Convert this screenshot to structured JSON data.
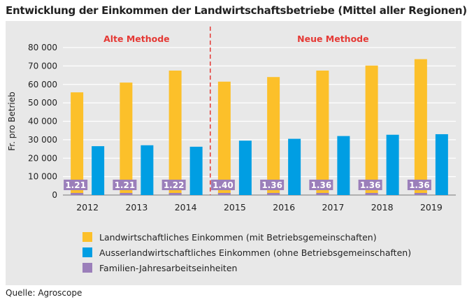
{
  "title": "Entwicklung der Einkommen der Landwirtschaftsbetriebe (Mittel aller Regionen)",
  "source": "Quelle: Agroscope",
  "colors": {
    "agri": "#fcc02a",
    "nonagri": "#009ee3",
    "family": "#9b7fba",
    "divider": "#e53935",
    "method_label": "#e53935"
  },
  "chart_data": {
    "type": "bar",
    "title": "Entwicklung der Einkommen der Landwirtschaftsbetriebe (Mittel aller Regionen)",
    "ylabel": "Fr. pro Betrieb",
    "xlabel": "",
    "ylim": [
      0,
      80000
    ],
    "yticks": [
      0,
      10000,
      20000,
      30000,
      40000,
      50000,
      60000,
      70000,
      80000
    ],
    "ytick_labels": [
      "0",
      "10 000",
      "20 000",
      "30 000",
      "40 000",
      "50 000",
      "60 000",
      "70 000",
      "80 000"
    ],
    "grid": true,
    "categories": [
      "2012",
      "2013",
      "2014",
      "2015",
      "2016",
      "2017",
      "2018",
      "2019"
    ],
    "groups": [
      {
        "label": "Alte Methode",
        "categories": [
          "2012",
          "2013",
          "2014"
        ]
      },
      {
        "label": "Neue Methode",
        "categories": [
          "2015",
          "2016",
          "2017",
          "2018",
          "2019"
        ]
      }
    ],
    "series": [
      {
        "name": "Landwirtschaftliches Einkommen (mit Betriebsgemeinschaften)",
        "values": [
          55700,
          61000,
          67500,
          61500,
          64000,
          67500,
          70200,
          73700
        ]
      },
      {
        "name": "Ausserlandwirtschaftliches Einkommen (ohne Betriebsgemeinschaften)",
        "values": [
          26500,
          27000,
          26200,
          29500,
          30500,
          32000,
          32700,
          33000
        ]
      },
      {
        "name": "Familien-Jahresarbeitseinheiten",
        "values": [
          1.21,
          1.21,
          1.22,
          1.4,
          1.36,
          1.36,
          1.36,
          1.36
        ],
        "labels": [
          "1.21",
          "1.21",
          "1.22",
          "1.40",
          "1.36",
          "1.36",
          "1.36",
          "1.36"
        ]
      }
    ],
    "legend_position": "bottom"
  }
}
